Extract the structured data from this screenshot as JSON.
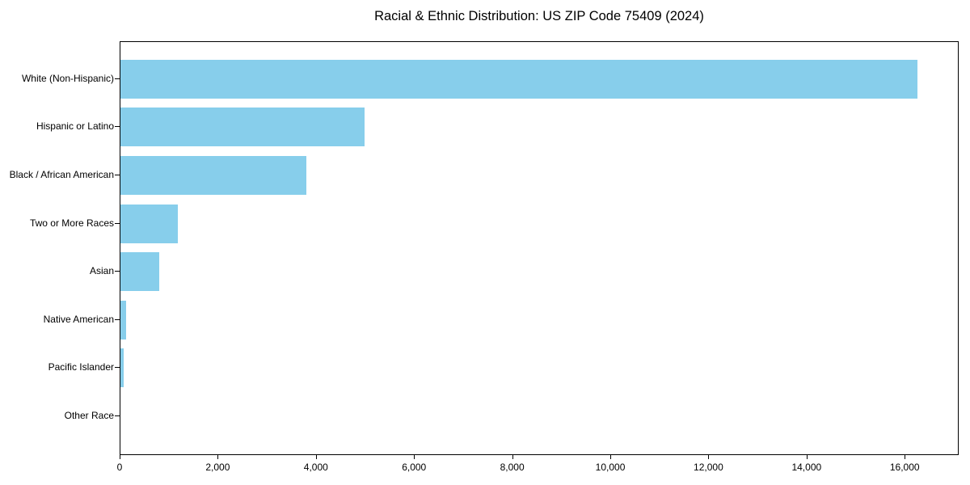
{
  "chart_data": {
    "type": "bar",
    "orientation": "horizontal",
    "title": "Racial & Ethnic Distribution: US ZIP Code 75409 (2024)",
    "categories": [
      "White (Non-Hispanic)",
      "Hispanic or Latino",
      "Black / African American",
      "Two or More Races",
      "Asian",
      "Native American",
      "Pacific Islander",
      "Other Race"
    ],
    "values": [
      16270,
      4990,
      3790,
      1170,
      785,
      110,
      70,
      0
    ],
    "xlabel": "",
    "ylabel": "",
    "xlim": [
      0,
      17100
    ],
    "x_ticks": [
      0,
      2000,
      4000,
      6000,
      8000,
      10000,
      12000,
      14000,
      16000
    ],
    "x_tick_labels": [
      "0",
      "2,000",
      "4,000",
      "6,000",
      "8,000",
      "10,000",
      "12,000",
      "14,000",
      "16,000"
    ],
    "grid": false,
    "legend": null,
    "colors": {
      "bar": "#87CEEB",
      "axis": "#000000",
      "text": "#000000",
      "background": "#ffffff"
    }
  }
}
